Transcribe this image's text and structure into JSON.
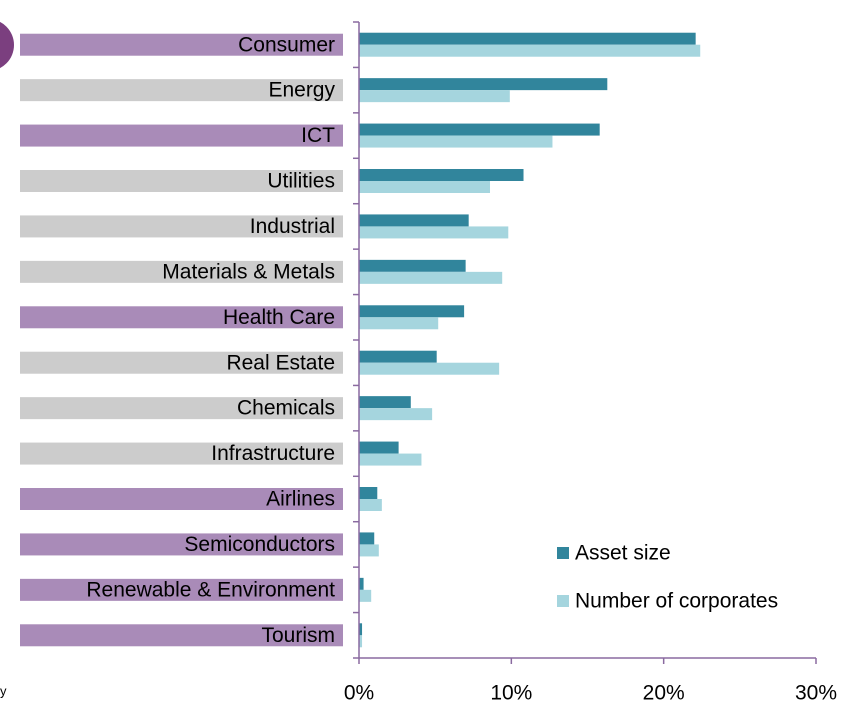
{
  "chart_data": {
    "type": "hbar",
    "categories": [
      "Consumer",
      "Energy",
      "ICT",
      "Utilities",
      "Industrial",
      "Materials & Metals",
      "Health Care",
      "Real Estate",
      "Chemicals",
      "Infrastructure",
      "Airlines",
      "Semiconductors",
      "Renewable & Environment",
      "Tourism"
    ],
    "label_colors": [
      "#a98bb8",
      "#cccccc",
      "#a98bb8",
      "#cccccc",
      "#cccccc",
      "#cccccc",
      "#a98bb8",
      "#cccccc",
      "#cccccc",
      "#cccccc",
      "#a98bb8",
      "#a98bb8",
      "#a98bb8",
      "#a98bb8"
    ],
    "series": [
      {
        "name": "Asset size",
        "color": "#31859c",
        "values": [
          22.1,
          16.3,
          15.8,
          10.8,
          7.2,
          7.0,
          6.9,
          5.1,
          3.4,
          2.6,
          1.2,
          1.0,
          0.3,
          0.2
        ]
      },
      {
        "name": "Number of corporates",
        "color": "#a5d5de",
        "values": [
          22.4,
          9.9,
          12.7,
          8.6,
          9.8,
          9.4,
          5.2,
          9.2,
          4.8,
          4.1,
          1.5,
          1.3,
          0.8,
          0.2
        ]
      }
    ],
    "xlim": [
      0,
      30
    ],
    "xticks": [
      {
        "value": 0,
        "label": "0%"
      },
      {
        "value": 10,
        "label": "10%"
      },
      {
        "value": 20,
        "label": "20%"
      },
      {
        "value": 30,
        "label": "30%"
      }
    ],
    "legend": "lower right",
    "source_fragment": "y"
  }
}
